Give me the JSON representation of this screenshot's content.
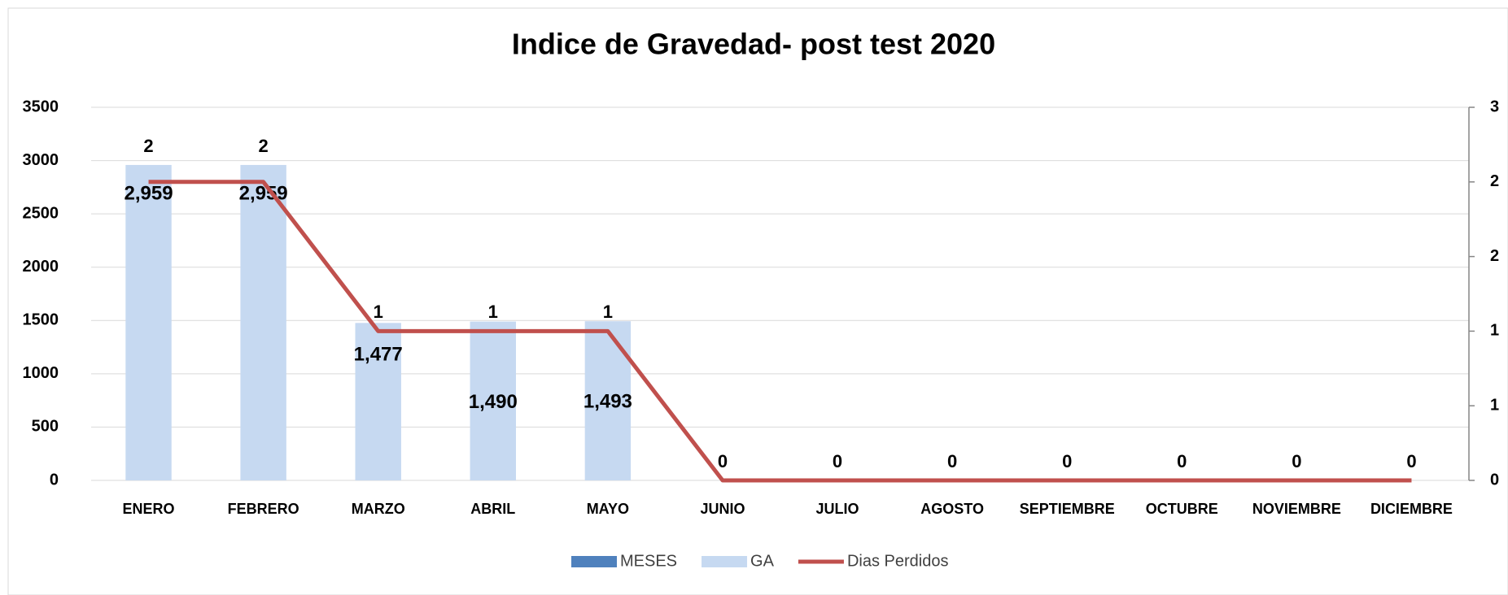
{
  "chart_data": {
    "type": "bar",
    "title": "Indice de Gravedad- post test 2020",
    "categories": [
      "ENERO",
      "FEBRERO",
      "MARZO",
      "ABRIL",
      "MAYO",
      "JUNIO",
      "JULIO",
      "AGOSTO",
      "SEPTIEMBRE",
      "OCTUBRE",
      "NOVIEMBRE",
      "DICIEMBRE"
    ],
    "series": [
      {
        "name": "MESES",
        "color": "#4f81bd"
      },
      {
        "name": "GA",
        "color": "#c6d9f1",
        "type": "bar",
        "values": [
          2959,
          2959,
          1477,
          1490,
          1493,
          0,
          0,
          0,
          0,
          0,
          0,
          0
        ],
        "value_labels": [
          "2,959",
          "2,959",
          "1,477",
          "1,490",
          "1,493",
          null,
          null,
          null,
          null,
          null,
          null,
          null
        ]
      },
      {
        "name": "Dias Perdidos",
        "color": "#c0504d",
        "type": "line",
        "axis": "y2",
        "values": [
          2.4,
          2.4,
          1.2,
          1.2,
          1.2,
          0,
          0,
          0,
          0,
          0,
          0,
          0
        ],
        "value_labels": [
          "2",
          "2",
          "1",
          "1",
          "1",
          "0",
          "0",
          "0",
          "0",
          "0",
          "0",
          "0"
        ]
      }
    ],
    "ylim": [
      0,
      3500
    ],
    "yticks": [
      0,
      500,
      1000,
      1500,
      2000,
      2500,
      3000,
      3500
    ],
    "y2lim": [
      0,
      3
    ],
    "y2ticks": [
      0,
      {
        "value": 0.6,
        "label": "1"
      },
      {
        "value": 1.2,
        "label": "1"
      },
      {
        "value": 1.8,
        "label": "2"
      },
      {
        "value": 2.4,
        "label": "2"
      },
      3
    ],
    "grid": true,
    "legend": "bottom"
  }
}
